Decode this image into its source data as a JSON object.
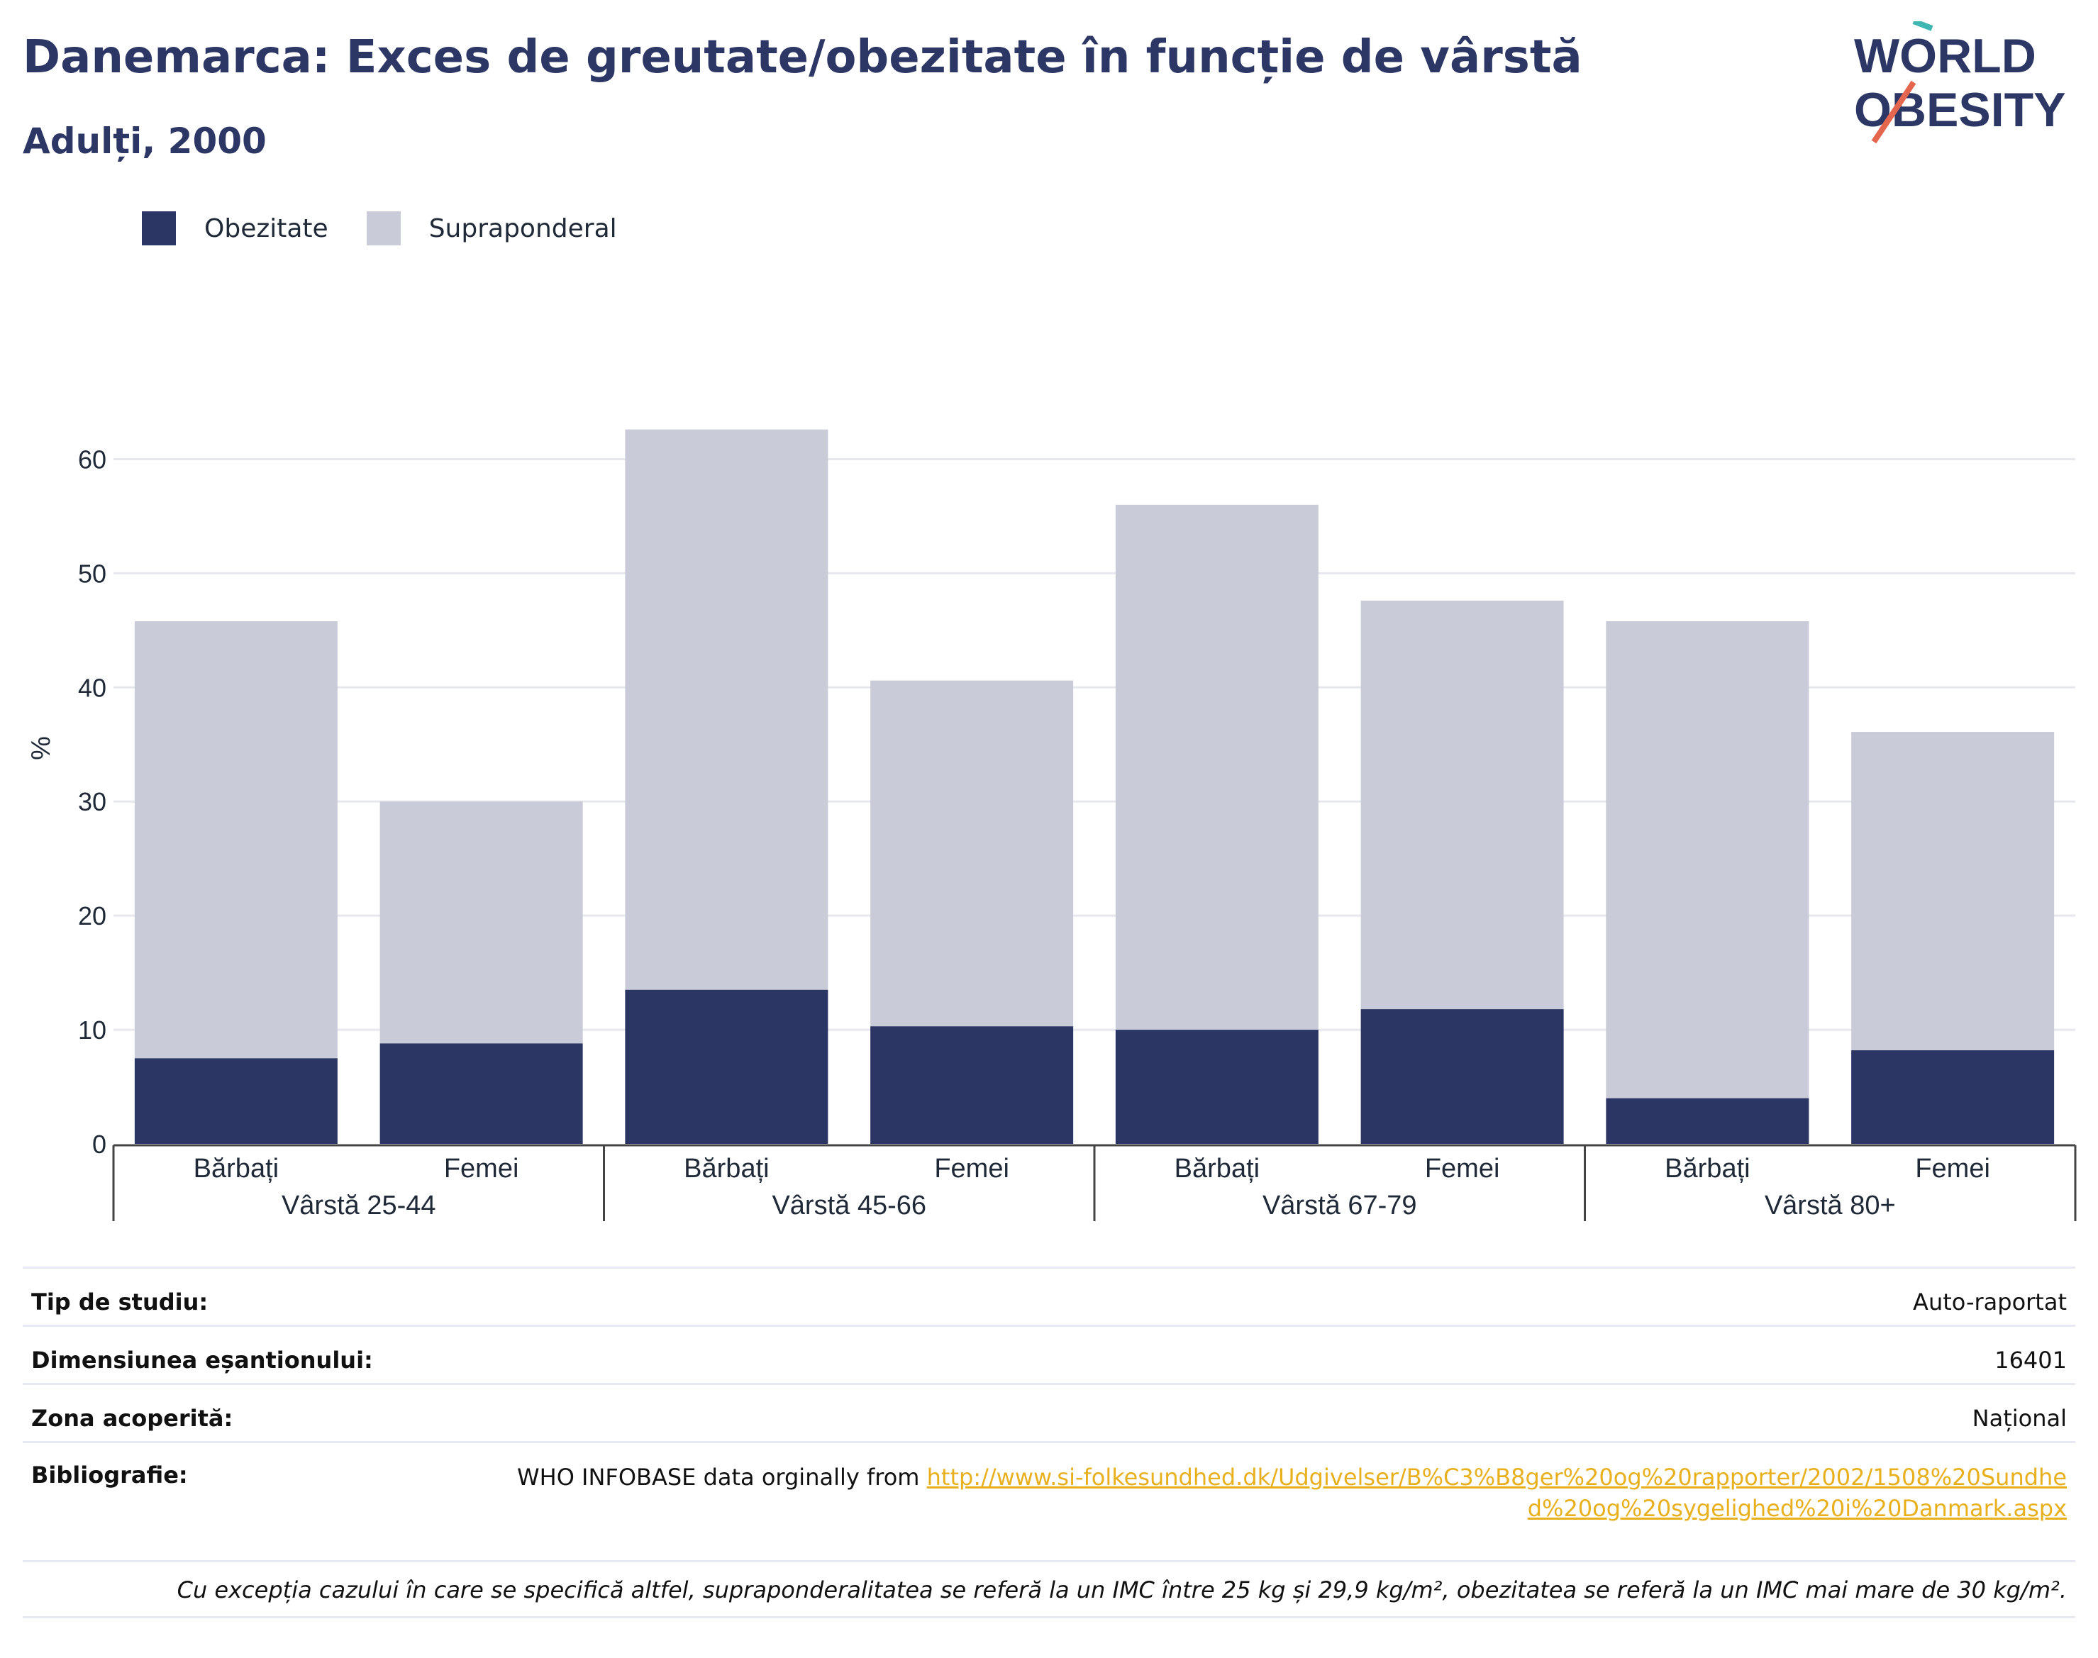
{
  "header": {
    "title": "Danemarca: Exces de greutate/obezitate în funcție de vârstă",
    "subtitle": "Adulți, 2000"
  },
  "logo": {
    "line1": "WORLD",
    "line2": "OBESITY"
  },
  "colors": {
    "obesity": "#2b3664",
    "overweight": "#c9cbd8",
    "title": "#2c3765",
    "link": "#e8b01d",
    "logo_teal": "#3fb6b2",
    "logo_red": "#e5664e"
  },
  "chart_data": {
    "type": "bar",
    "stacked": true,
    "ylabel": "%",
    "ylim": [
      0,
      65
    ],
    "yticks": [
      0,
      10,
      20,
      30,
      40,
      50,
      60
    ],
    "grid": true,
    "legend_position": "top-left",
    "categories": [
      "Bărbați",
      "Femei",
      "Bărbați",
      "Femei",
      "Bărbați",
      "Femei",
      "Bărbați",
      "Femei"
    ],
    "groups": [
      {
        "label": "Vârstă 25-44",
        "categories": [
          "Bărbați",
          "Femei"
        ]
      },
      {
        "label": "Vârstă 45-66",
        "categories": [
          "Bărbați",
          "Femei"
        ]
      },
      {
        "label": "Vârstă 67-79",
        "categories": [
          "Bărbați",
          "Femei"
        ]
      },
      {
        "label": "Vârstă 80+",
        "categories": [
          "Bărbați",
          "Femei"
        ]
      }
    ],
    "series": [
      {
        "name": "Obezitate",
        "values": [
          7.5,
          8.8,
          13.5,
          10.3,
          10.0,
          11.8,
          4.0,
          8.2
        ]
      },
      {
        "name": "Supraponderal",
        "values": [
          38.3,
          21.2,
          49.1,
          30.3,
          46.0,
          35.8,
          41.8,
          27.9
        ]
      }
    ]
  },
  "info": {
    "study_type_label": "Tip de studiu:",
    "study_type_value": "Auto-raportat",
    "sample_size_label": "Dimensiunea eșantionului:",
    "sample_size_value": "16401",
    "coverage_label": "Zona acoperită:",
    "coverage_value": "Național",
    "bibliography_label": "Bibliografie:",
    "bibliography_text": "WHO INFOBASE data orginally from ",
    "bibliography_link": "http://www.si-folkesundhed.dk/Udgivelser/B%C3%B8ger%20og%20rapporter/2002/1508%20Sundhed%20og%20sygelighed%20i%20Danmark.aspx",
    "note": "Cu excepția cazului în care se specifică altfel, supraponderalitatea se referă la un IMC între 25 kg și 29,9 kg/m², obezitatea se referă la un IMC mai mare de 30 kg/m²."
  }
}
